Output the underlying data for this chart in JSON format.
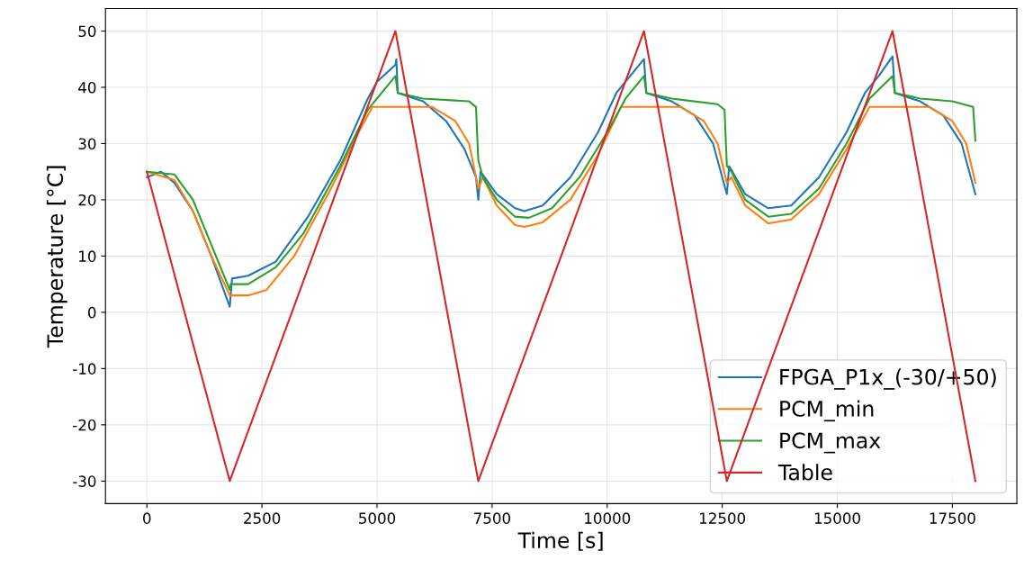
{
  "chart_data": {
    "type": "line",
    "xlabel": "Time [s]",
    "ylabel": "Temperature [°C]",
    "xlim": [
      -900,
      18900
    ],
    "ylim": [
      -34,
      54
    ],
    "xticks": [
      0,
      2500,
      5000,
      7500,
      10000,
      12500,
      15000,
      17500
    ],
    "yticks": [
      -30,
      -20,
      -10,
      0,
      10,
      20,
      30,
      40,
      50
    ],
    "grid": true,
    "legend": "bottom right",
    "series": [
      {
        "name": "FPGA_P1x_(-30/+50)",
        "color": "#1f77b4",
        "x": [
          0,
          300,
          600,
          1000,
          1400,
          1800,
          1850,
          2200,
          2800,
          3500,
          4200,
          4800,
          5000,
          5400,
          5420,
          5450,
          6000,
          6500,
          6900,
          7150,
          7200,
          7250,
          7600,
          8000,
          8200,
          8600,
          9200,
          9800,
          10200,
          10500,
          10800,
          10850,
          11400,
          11900,
          12300,
          12600,
          12650,
          13000,
          13500,
          14000,
          14600,
          15200,
          15600,
          15900,
          16200,
          16250,
          16800,
          17300,
          17700,
          18000
        ],
        "values": [
          24,
          25,
          23,
          18,
          10,
          1,
          6,
          6.5,
          9,
          17,
          27,
          38,
          41,
          44,
          45,
          39,
          37.5,
          34,
          29,
          24,
          20,
          25,
          21,
          18.5,
          18,
          19,
          24,
          32,
          39,
          42,
          45,
          39,
          37.5,
          35,
          30,
          21,
          26,
          21,
          18.5,
          19,
          24,
          32,
          39,
          42,
          45.5,
          39,
          37.5,
          35,
          30,
          21
        ]
      },
      {
        "name": "PCM_min",
        "color": "#ff7f0e",
        "x": [
          0,
          600,
          1000,
          1400,
          1800,
          2200,
          2600,
          3200,
          4000,
          4600,
          4900,
          5400,
          6200,
          6700,
          7000,
          7200,
          7300,
          7600,
          8000,
          8200,
          8600,
          9200,
          9800,
          10300,
          11600,
          12100,
          12400,
          12600,
          12700,
          13000,
          13500,
          14000,
          14600,
          15200,
          15700,
          17000,
          17500,
          17800,
          18000
        ],
        "values": [
          25,
          23.5,
          18,
          10,
          3,
          3,
          4,
          10,
          22,
          32,
          36.5,
          36.5,
          36.5,
          34,
          30,
          22,
          24,
          19,
          15.5,
          15.2,
          16,
          20,
          28,
          36.5,
          36.5,
          34,
          30,
          23,
          24,
          19,
          15.8,
          16.5,
          21,
          29,
          36.5,
          36.5,
          34,
          30,
          23
        ]
      },
      {
        "name": "PCM_max",
        "color": "#2ca02c",
        "x": [
          0,
          600,
          1000,
          1400,
          1800,
          1820,
          2200,
          2800,
          3400,
          4200,
          4800,
          5400,
          5450,
          6000,
          7000,
          7150,
          7200,
          7300,
          7600,
          8000,
          8300,
          8800,
          9400,
          10000,
          10400,
          10800,
          10850,
          11400,
          12400,
          12550,
          12600,
          12700,
          13000,
          13500,
          14000,
          14600,
          15200,
          15700,
          16200,
          16250,
          16800,
          17500,
          17950,
          18000
        ],
        "values": [
          25,
          24.5,
          20,
          12,
          4,
          5,
          5,
          8,
          14,
          26,
          36,
          42,
          39,
          38,
          37.5,
          36.5,
          27,
          24,
          20,
          17,
          16.8,
          18.5,
          24,
          32,
          38,
          42,
          39,
          38,
          37,
          36,
          26,
          25,
          20,
          17,
          17.5,
          22,
          30,
          38,
          42,
          39,
          38,
          37.5,
          36.5,
          30.5
        ]
      },
      {
        "name": "Table",
        "color": "#d62728",
        "x": [
          0,
          1800,
          5400,
          7200,
          10800,
          12600,
          16200,
          18000
        ],
        "values": [
          25,
          -30,
          50,
          -30,
          50,
          -30,
          50,
          -30
        ]
      }
    ]
  }
}
